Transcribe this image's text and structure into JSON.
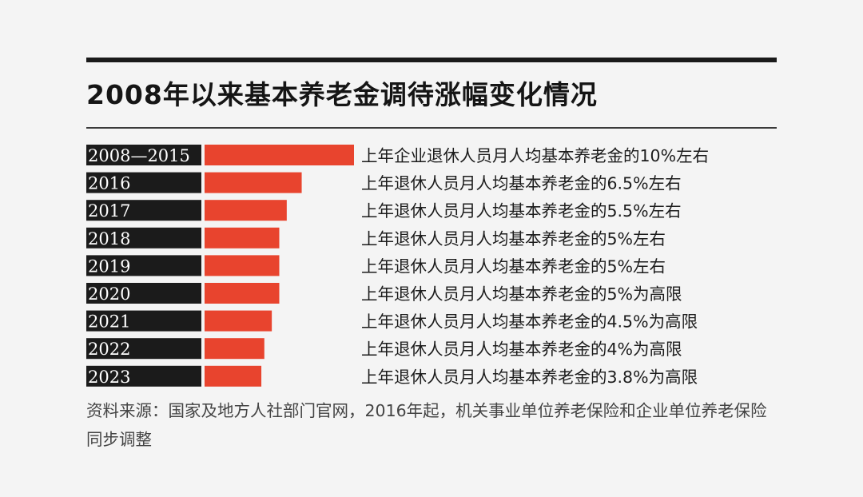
{
  "title": "2008年以来基本养老金调待涨幅变化情况",
  "source": "资料来源：国家及地方人社部门官网，2016年起，机关事业单位养老保险和企业单位养老保险同步调整",
  "colors": {
    "bar": "#e8442e",
    "label_bg": "#1b1b1b",
    "rule": "#1a1a1a"
  },
  "chart_data": {
    "type": "bar",
    "orientation": "horizontal",
    "categories": [
      "2008—2015",
      "2016",
      "2017",
      "2018",
      "2019",
      "2020",
      "2021",
      "2022",
      "2023"
    ],
    "values": [
      10,
      6.5,
      5.5,
      5,
      5,
      5,
      4.5,
      4,
      3.8
    ],
    "annotations": [
      "上年企业退休人员月人均基本养老金的10%左右",
      "上年退休人员月人均基本养老金的6.5%左右",
      "上年退休人员月人均基本养老金的5.5%左右",
      "上年退休人员月人均基本养老金的5%左右",
      "上年退休人员月人均基本养老金的5%左右",
      "上年退休人员月人均基本养老金的5%为高限",
      "上年退休人员月人均基本养老金的4.5%为高限",
      "上年退休人员月人均基本养老金的4%为高限",
      "上年退休人员月人均基本养老金的3.8%为高限"
    ]
  }
}
